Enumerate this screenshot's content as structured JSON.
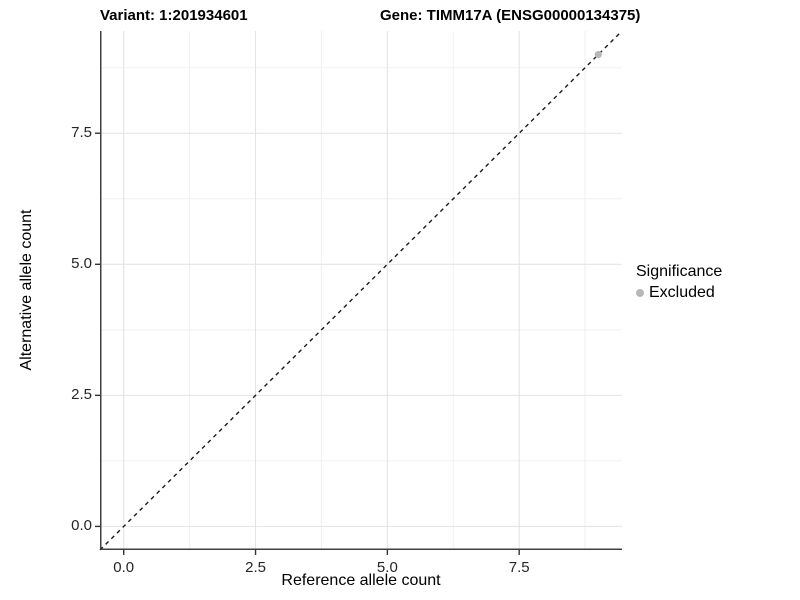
{
  "header": {
    "variant_title": "Variant: 1:201934601",
    "gene_title": "Gene: TIMM17A (ENSG00000134375)"
  },
  "chart_data": {
    "type": "scatter",
    "title": "Variant: 1:201934601   Gene: TIMM17A (ENSG00000134375)",
    "xlabel": "Reference allele count",
    "ylabel": "Alternative allele count",
    "xlim": [
      -0.45,
      9.45
    ],
    "ylim": [
      -0.45,
      9.45
    ],
    "x_major_ticks": [
      0.0,
      2.5,
      5.0,
      7.5
    ],
    "x_tick_labels": [
      "0.0",
      "2.5",
      "5.0",
      "7.5"
    ],
    "y_major_ticks": [
      0.0,
      2.5,
      5.0,
      7.5
    ],
    "y_tick_labels": [
      "0.0",
      "2.5",
      "5.0",
      "7.5"
    ],
    "minor_ticks": [
      1.25,
      3.75,
      6.25,
      8.75
    ],
    "grid": "major+minor",
    "reference_line": {
      "type": "abline",
      "slope": 1,
      "intercept": 0,
      "style": "dashed",
      "color": "#1a1a1a"
    },
    "series": [
      {
        "name": "Excluded",
        "color": "#b8b8b8",
        "points": [
          {
            "x": 9,
            "y": 9
          }
        ]
      }
    ],
    "legend": {
      "title": "Significance",
      "position": "right",
      "items": [
        {
          "label": "Excluded",
          "color": "#b8b8b8"
        }
      ]
    },
    "colors": {
      "grid_major": "#e2e2e2",
      "grid_minor": "#f0f0f0",
      "axis_line": "#404040",
      "tick_mark": "#333333",
      "background": "#ffffff"
    }
  }
}
